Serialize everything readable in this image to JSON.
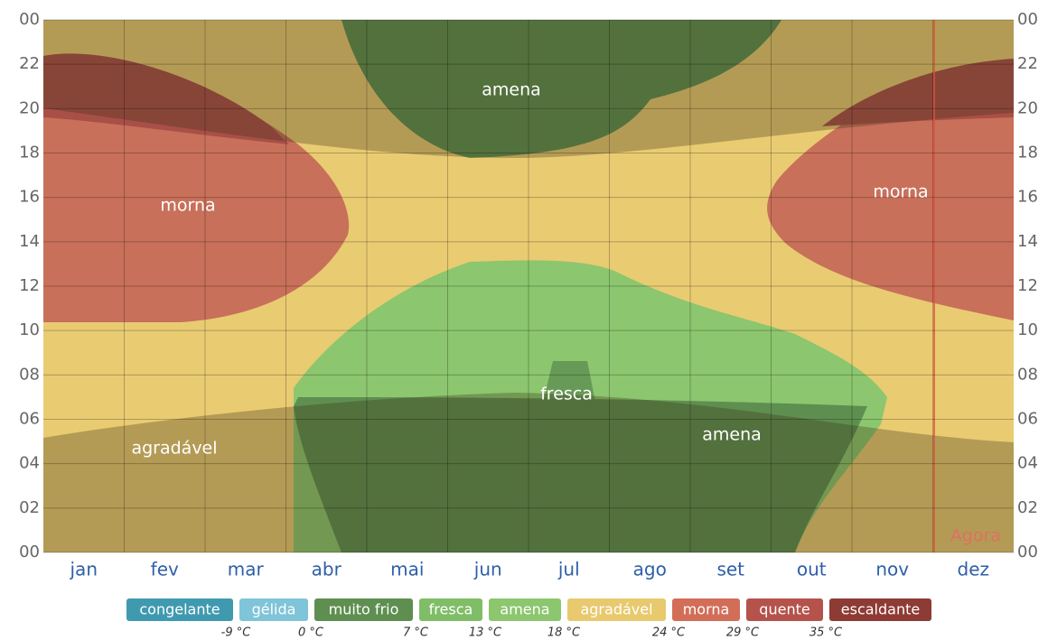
{
  "chart_data": {
    "type": "band",
    "categories": [
      "jan",
      "fev",
      "mar",
      "abr",
      "mai",
      "jun",
      "jul",
      "ago",
      "set",
      "out",
      "nov",
      "dez"
    ],
    "ylim": [
      0,
      24
    ],
    "yticks": [
      {
        "value": 0,
        "label": "00"
      },
      {
        "value": 2,
        "label": "02"
      },
      {
        "value": 4,
        "label": "04"
      },
      {
        "value": 6,
        "label": "06"
      },
      {
        "value": 8,
        "label": "08"
      },
      10,
      12,
      14,
      16,
      18,
      20,
      22,
      {
        "value": 24,
        "label": "00"
      }
    ],
    "grid": true,
    "annotations": [
      "amena",
      "morna",
      "morna",
      "fresca",
      "amena",
      "agradável"
    ],
    "now_label": "Agora",
    "legend": [
      {
        "name": "congelante",
        "color": "#3f9ab0"
      },
      {
        "name": "gélida",
        "color": "#7fc4d8"
      },
      {
        "name": "muito frio",
        "color": "#5e8f50"
      },
      {
        "name": "fresca",
        "color": "#7fbd66"
      },
      {
        "name": "amena",
        "color": "#8cc66e"
      },
      {
        "name": "agradável",
        "color": "#e8c96e"
      },
      {
        "name": "morna",
        "color": "#d26e58"
      },
      {
        "name": "quente",
        "color": "#b5524c"
      },
      {
        "name": "escaldante",
        "color": "#8e3b35"
      }
    ],
    "thresholds": [
      {
        "value": -9,
        "label": "-9 °C"
      },
      {
        "value": 0,
        "label": "0 °C"
      },
      {
        "value": 7,
        "label": "7 °C"
      },
      {
        "value": 13,
        "label": "13 °C"
      },
      {
        "value": 18,
        "label": "18 °C"
      },
      {
        "value": 24,
        "label": "24 °C"
      },
      {
        "value": 29,
        "label": "29 °C"
      },
      {
        "value": 35,
        "label": "35 °C"
      }
    ]
  }
}
